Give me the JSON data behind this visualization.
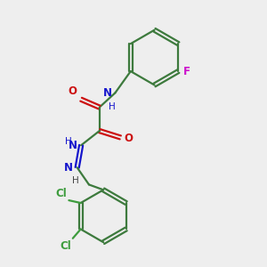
{
  "bg_color": "#eeeeee",
  "bond_color": "#3d7a3d",
  "nitrogen_color": "#1515cc",
  "oxygen_color": "#cc1111",
  "fluorine_color": "#cc11cc",
  "chlorine_color": "#3d9c3d",
  "line_width": 1.6,
  "font_size": 8.5,
  "fig_size": [
    3.0,
    3.0
  ],
  "dpi": 100,
  "xlim": [
    0,
    10
  ],
  "ylim": [
    0,
    10
  ]
}
